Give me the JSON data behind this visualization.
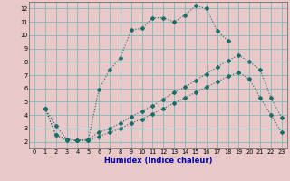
{
  "xlabel": "Humidex (Indice chaleur)",
  "bg_color": "#c8e8e8",
  "cell_color": "#e8c8c8",
  "major_grid_color": "#80b8b8",
  "line_color": "#1a6e6a",
  "xlim": [
    -0.5,
    23.5
  ],
  "ylim": [
    1.5,
    12.5
  ],
  "xticks": [
    0,
    1,
    2,
    3,
    4,
    5,
    6,
    7,
    8,
    9,
    10,
    11,
    12,
    13,
    14,
    15,
    16,
    17,
    18,
    19,
    20,
    21,
    22,
    23
  ],
  "yticks": [
    2,
    3,
    4,
    5,
    6,
    7,
    8,
    9,
    10,
    11,
    12
  ],
  "curves": [
    {
      "x": [
        1,
        2,
        3,
        4,
        5,
        6,
        7,
        8,
        9,
        10,
        11,
        12,
        13,
        14,
        15,
        16,
        17,
        18
      ],
      "y": [
        4.5,
        3.2,
        2.2,
        2.1,
        2.1,
        5.9,
        7.4,
        8.3,
        10.4,
        10.5,
        11.3,
        11.3,
        11.0,
        11.5,
        12.2,
        12.0,
        10.3,
        9.6
      ]
    },
    {
      "x": [
        1,
        2,
        3,
        4,
        5,
        6,
        7,
        8,
        9,
        10,
        11,
        12,
        13,
        14,
        15,
        16,
        17,
        18,
        19,
        20,
        21,
        22,
        23
      ],
      "y": [
        4.5,
        2.5,
        2.2,
        2.1,
        2.2,
        2.7,
        3.0,
        3.4,
        3.9,
        4.3,
        4.7,
        5.2,
        5.7,
        6.1,
        6.6,
        7.1,
        7.6,
        8.1,
        8.5,
        8.0,
        7.4,
        5.3,
        3.8
      ]
    },
    {
      "x": [
        1,
        2,
        3,
        4,
        5,
        6,
        7,
        8,
        9,
        10,
        11,
        12,
        13,
        14,
        15,
        16,
        17,
        18,
        19,
        20,
        21,
        22,
        23
      ],
      "y": [
        4.5,
        2.5,
        2.1,
        2.1,
        2.1,
        2.4,
        2.7,
        3.0,
        3.4,
        3.7,
        4.1,
        4.5,
        4.9,
        5.3,
        5.7,
        6.1,
        6.5,
        6.9,
        7.2,
        6.7,
        5.3,
        4.0,
        2.7
      ]
    }
  ]
}
